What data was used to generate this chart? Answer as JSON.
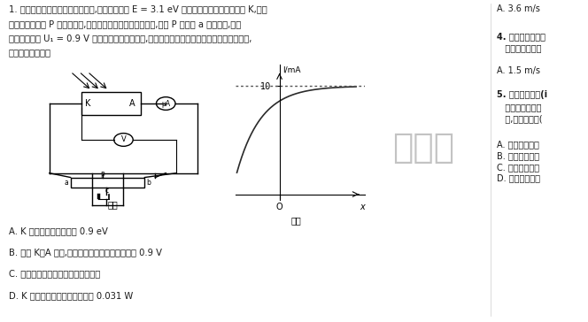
{
  "bg_color": "#ffffff",
  "title_text": "1. 图甲是研究光电效应的实验装置,用光子能量为 E = 3.1 eV 的单色光照射光电管的阴极 K,将滑",
  "line2": "动变阻器的滑片 P 移到中点处,此时电流表有示数。闭合开关,滑片 P 移动到 a 端过程中,电压",
  "line3": "表示数大小为 U₁ = 0.9 V 时电流表示数刚好为零,图乙是光电流随滑片到中点位移的变化图像,",
  "line4": "下列说法正确的是",
  "fig_jia_label": "图甲",
  "fig_yi_label": "图乙",
  "graph_ylabel": "I/mA",
  "graph_xlabel": "x",
  "graph_yval": 10,
  "options": [
    "A. K 极板金属的逸出功为 0.9 eV",
    "B. 减小 K、A 间距,电流恰为零时电压表示数大于 0.9 V",
    "C. 逸出光电子的德布罗意波长均相等",
    "D. K 极板接收的光照功率最小为 0.031 W"
  ],
  "right_col_lines": [
    "A. 3.6 m/s",
    "4. 一列简谐横波沿",
    "   简谐横波的波速",
    "A. 1.5 m/s",
    "5. 可利用液态氮(i",
    "   用降温加压的方",
    "   度,利用液态氮(",
    "A. 从开始加压直",
    "B. 调节温度除氮",
    "C. 同温度下氧分",
    "D. 液化过程容易"
  ],
  "watermark_text": "金考卷",
  "text_color": "#1a1a1a",
  "graph_color": "#2a2a2a",
  "dotted_color": "#555555"
}
